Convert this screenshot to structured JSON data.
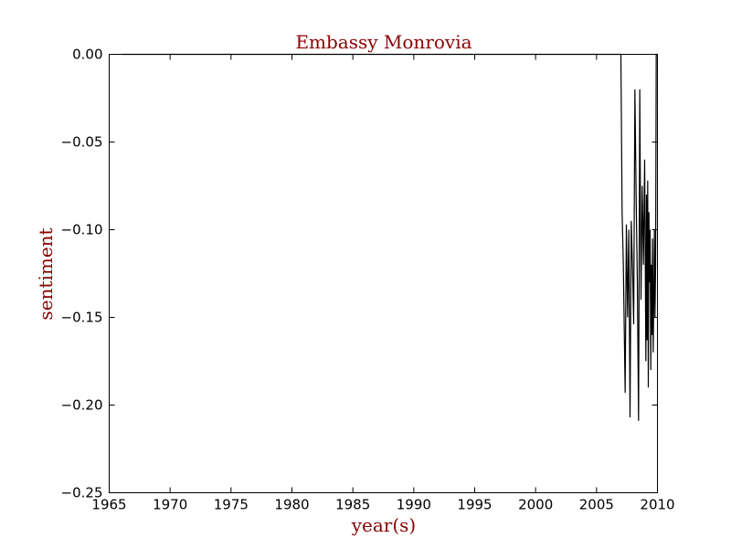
{
  "colors": {
    "text_accent": "#8b0000",
    "line": "#000000",
    "axes": "#000000",
    "background": "#ffffff"
  },
  "chart_data": {
    "type": "line",
    "title": "Embassy Monrovia",
    "xlabel": "year(s)",
    "ylabel": "sentiment",
    "xlim": [
      1965,
      2010
    ],
    "ylim": [
      -0.25,
      0.0
    ],
    "xticks": [
      1965,
      1970,
      1975,
      1980,
      1985,
      1990,
      1995,
      2000,
      2005,
      2010
    ],
    "xtick_labels": [
      "1965",
      "1970",
      "1975",
      "1980",
      "1985",
      "1990",
      "1995",
      "2000",
      "2005",
      "2010"
    ],
    "yticks": [
      0.0,
      -0.05,
      -0.1,
      -0.15,
      -0.2,
      -0.25
    ],
    "ytick_labels": [
      "0.00",
      "−0.05",
      "−0.10",
      "−0.15",
      "−0.20",
      "−0.25"
    ],
    "grid": false,
    "legend": "none",
    "series": [
      {
        "color": "#000000",
        "x": [
          1966.1,
          2007.0,
          2007.1,
          2007.2,
          2007.35,
          2007.45,
          2007.55,
          2007.65,
          2007.75,
          2007.85,
          2007.95,
          2008.05,
          2008.15,
          2008.25,
          2008.35,
          2008.45,
          2008.55,
          2008.65,
          2008.75,
          2008.85,
          2008.95,
          2009.05,
          2009.1,
          2009.15,
          2009.2,
          2009.25,
          2009.3,
          2009.35,
          2009.4,
          2009.45,
          2009.5,
          2009.55,
          2009.6,
          2009.65,
          2009.7,
          2009.75,
          2009.8,
          2009.85,
          2009.9,
          2009.95,
          2010.0
        ],
        "y": [
          0.0,
          0.0,
          -0.09,
          -0.12,
          -0.193,
          -0.097,
          -0.15,
          -0.1,
          -0.207,
          -0.095,
          -0.12,
          -0.154,
          -0.02,
          -0.08,
          -0.13,
          -0.209,
          -0.02,
          -0.14,
          -0.075,
          -0.12,
          -0.06,
          -0.175,
          -0.08,
          -0.163,
          -0.072,
          -0.19,
          -0.09,
          -0.13,
          -0.1,
          -0.18,
          -0.12,
          -0.16,
          -0.105,
          -0.17,
          -0.14,
          -0.1,
          -0.15,
          -0.12,
          -0.0,
          -0.0,
          0.0
        ]
      }
    ]
  }
}
